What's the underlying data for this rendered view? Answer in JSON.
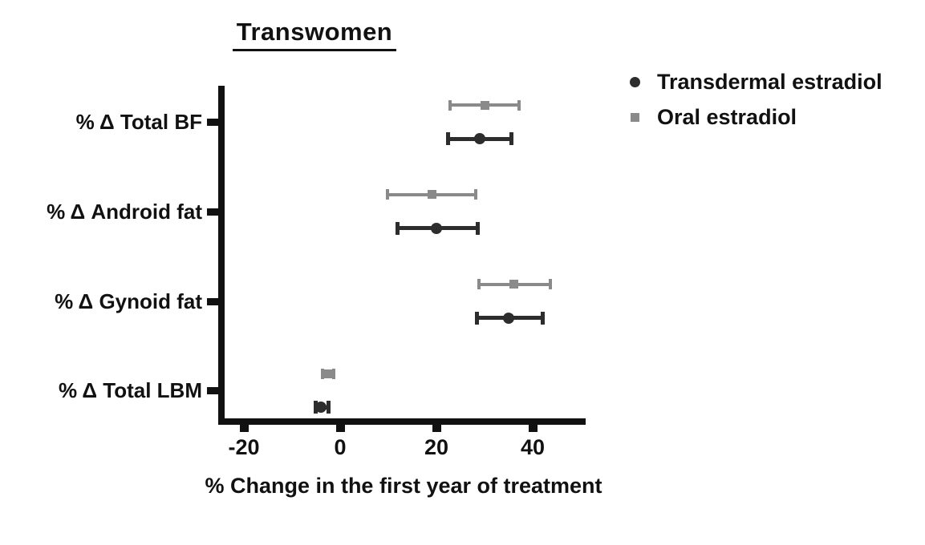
{
  "title": "Transwomen",
  "x_axis": {
    "label": "% Change in the first year of treatment"
  },
  "chart_data": {
    "type": "scatter",
    "subtype": "dot-plot-with-error-bars",
    "title": "Transwomen",
    "xlabel": "% Change in the first year of treatment",
    "ylabel": "",
    "categories": [
      "% Δ Total BF",
      "% Δ Android fat",
      "% Δ Gynoid fat",
      "% Δ Total LBM"
    ],
    "series": [
      {
        "name": "Transdermal estradiol",
        "marker": "circle",
        "color": "#2d2d2d",
        "values": [
          29,
          20,
          35,
          -4
        ],
        "ci_low": [
          22,
          11.5,
          28,
          -5.5
        ],
        "ci_high": [
          36,
          29,
          42.5,
          -2
        ]
      },
      {
        "name": "Oral estradiol",
        "marker": "square",
        "color": "#8a8a8a",
        "values": [
          30,
          19,
          36,
          -2.5
        ],
        "ci_low": [
          22.5,
          9.5,
          28.5,
          -4
        ],
        "ci_high": [
          37.5,
          28.5,
          44,
          -1
        ]
      }
    ],
    "xticks": [
      -20,
      0,
      20,
      40
    ],
    "xlim": [
      -25,
      51
    ],
    "grid": false,
    "legend_position": "top-right",
    "error_bars": true,
    "axis_color": "#111111"
  }
}
